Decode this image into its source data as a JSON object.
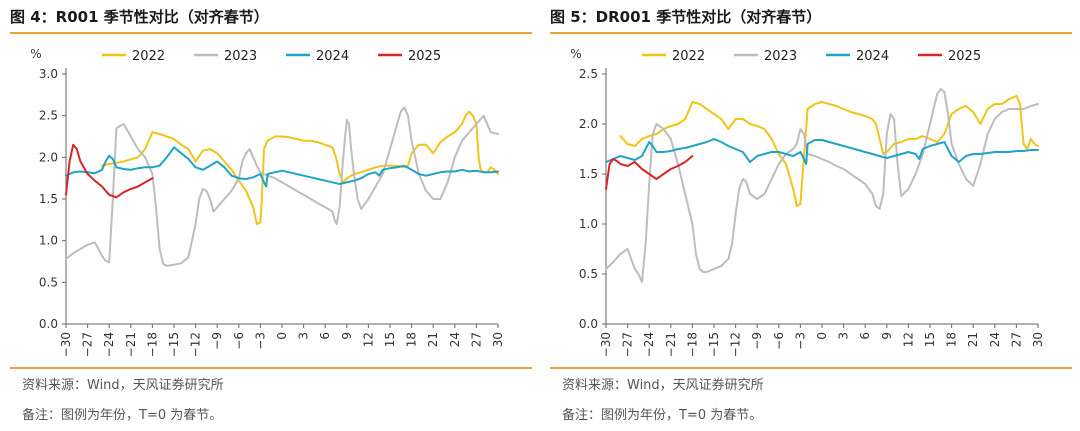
{
  "panels": [
    {
      "title": "图 4：R001 季节性对比（对齐春节）",
      "source": "资料来源：Wind，天风证券研究所",
      "remark": "备注：图例为年份，T=0 为春节。"
    },
    {
      "title": "图 5：DR001 季节性对比（对齐春节）",
      "source": "资料来源：Wind，天风证券研究所",
      "remark": "备注：图例为年份，T=0 为春节。"
    }
  ],
  "colors": {
    "2022": "#f0c419",
    "2023": "#bdbdbd",
    "2024": "#1fa3c8",
    "2025": "#d7262a"
  },
  "chart_data": [
    {
      "type": "line",
      "title": "R001 季节性对比（对齐春节）",
      "ylabel": "%",
      "xlabel": "",
      "ylim": [
        0.0,
        3.0
      ],
      "xlim": [
        -30,
        30
      ],
      "yticks": [
        "0.0",
        "0.5",
        "1.0",
        "1.5",
        "2.0",
        "2.5",
        "3.0"
      ],
      "xticks": [
        "-30",
        "-27",
        "-24",
        "-21",
        "-18",
        "-15",
        "-12",
        "-9",
        "-6",
        "-3",
        "0",
        "3",
        "6",
        "9",
        "12",
        "15",
        "18",
        "21",
        "24",
        "27",
        "30"
      ],
      "legend_position": "top",
      "series": [
        {
          "name": "2022",
          "x": [
            -25,
            -24,
            -22,
            -20,
            -19,
            -18,
            -17,
            -16,
            -15,
            -14,
            -13,
            -12,
            -11,
            -10,
            -9,
            -8,
            -7,
            -6,
            -5,
            -4,
            -3.5,
            -3,
            -2.8,
            -2.5,
            -2,
            -1,
            0,
            1,
            2,
            3,
            4,
            5,
            6,
            7,
            7.5,
            8,
            8.5,
            9,
            10,
            11,
            12,
            13,
            14,
            15,
            16,
            17,
            17.5,
            18,
            19,
            20,
            21,
            22,
            23,
            24,
            25,
            25.5,
            26,
            26.5,
            27,
            27.3,
            27.6,
            28,
            28.5,
            29,
            29.5,
            30
          ],
          "values": [
            1.9,
            1.92,
            1.95,
            2.0,
            2.1,
            2.3,
            2.28,
            2.25,
            2.22,
            2.15,
            2.1,
            1.95,
            2.08,
            2.1,
            2.05,
            1.95,
            1.85,
            1.72,
            1.6,
            1.4,
            1.2,
            1.22,
            1.5,
            2.1,
            2.2,
            2.25,
            2.25,
            2.24,
            2.22,
            2.2,
            2.2,
            2.18,
            2.15,
            2.12,
            2.0,
            1.8,
            1.7,
            1.75,
            1.8,
            1.82,
            1.85,
            1.88,
            1.9,
            1.9,
            1.9,
            1.88,
            1.9,
            2.05,
            2.15,
            2.15,
            2.05,
            2.18,
            2.25,
            2.3,
            2.4,
            2.5,
            2.55,
            2.5,
            2.4,
            2.0,
            1.85,
            1.82,
            1.82,
            1.88,
            1.85,
            1.8
          ]
        },
        {
          "name": "2023",
          "x": [
            -30,
            -29,
            -28,
            -27,
            -26,
            -25,
            -24.5,
            -24,
            -23.5,
            -23,
            -22,
            -21,
            -20,
            -19,
            -18,
            -17.5,
            -17,
            -16.5,
            -16,
            -15,
            -14,
            -13,
            -12.5,
            -12,
            -11.5,
            -11,
            -10.5,
            -10,
            -9.5,
            -9,
            -8,
            -7,
            -6,
            -5.5,
            -5,
            -4.5,
            -4,
            -3.5,
            -3,
            -2.5,
            -2,
            -1,
            0,
            1,
            2,
            3,
            4,
            5,
            6,
            7,
            7.3,
            7.6,
            8,
            8.5,
            9,
            9.3,
            9.6,
            10,
            10.5,
            11,
            12,
            13,
            14,
            15,
            16,
            16.5,
            17,
            17.5,
            18,
            19,
            20,
            21,
            22,
            23,
            24,
            25,
            26,
            27,
            28,
            29,
            30
          ],
          "values": [
            0.78,
            0.85,
            0.9,
            0.95,
            0.98,
            0.82,
            0.76,
            0.74,
            1.5,
            2.35,
            2.4,
            2.25,
            2.1,
            2.0,
            1.8,
            1.4,
            0.9,
            0.72,
            0.7,
            0.71,
            0.73,
            0.8,
            1.0,
            1.2,
            1.5,
            1.62,
            1.6,
            1.5,
            1.35,
            1.4,
            1.5,
            1.6,
            1.75,
            1.95,
            2.05,
            2.1,
            2.0,
            1.9,
            1.82,
            1.8,
            1.78,
            1.75,
            1.7,
            1.65,
            1.6,
            1.55,
            1.5,
            1.45,
            1.4,
            1.35,
            1.25,
            1.2,
            1.4,
            2.0,
            2.45,
            2.4,
            2.1,
            1.8,
            1.5,
            1.38,
            1.5,
            1.65,
            1.8,
            2.1,
            2.4,
            2.55,
            2.6,
            2.5,
            2.2,
            1.8,
            1.6,
            1.5,
            1.5,
            1.7,
            2.0,
            2.2,
            2.3,
            2.4,
            2.5,
            2.3,
            2.28
          ]
        },
        {
          "name": "2024",
          "x": [
            -30,
            -29,
            -28,
            -27,
            -26,
            -25,
            -24.5,
            -24,
            -23.5,
            -23,
            -22,
            -21,
            -20,
            -19,
            -18,
            -17,
            -16,
            -15,
            -14,
            -13,
            -12,
            -11,
            -10,
            -9,
            -8,
            -7,
            -6,
            -5,
            -4,
            -3,
            -2.5,
            -2.2,
            -2,
            -1,
            0,
            1,
            2,
            3,
            4,
            5,
            6,
            7,
            8,
            9,
            10,
            11,
            12,
            13,
            13.5,
            14,
            15,
            16,
            17,
            18,
            19,
            20,
            21,
            22,
            23,
            24,
            25,
            26,
            27,
            28,
            29,
            30
          ],
          "values": [
            1.78,
            1.82,
            1.83,
            1.82,
            1.81,
            1.85,
            1.95,
            2.02,
            1.98,
            1.88,
            1.86,
            1.85,
            1.87,
            1.88,
            1.88,
            1.9,
            2.0,
            2.12,
            2.05,
            1.98,
            1.88,
            1.85,
            1.9,
            1.95,
            1.88,
            1.78,
            1.75,
            1.74,
            1.76,
            1.8,
            1.7,
            1.65,
            1.8,
            1.82,
            1.84,
            1.82,
            1.8,
            1.78,
            1.76,
            1.74,
            1.72,
            1.7,
            1.68,
            1.7,
            1.72,
            1.75,
            1.8,
            1.82,
            1.78,
            1.85,
            1.87,
            1.88,
            1.9,
            1.85,
            1.8,
            1.78,
            1.8,
            1.82,
            1.83,
            1.83,
            1.85,
            1.83,
            1.84,
            1.82,
            1.82,
            1.83
          ]
        },
        {
          "name": "2025",
          "x": [
            -30,
            -29.5,
            -29,
            -28.5,
            -28,
            -27,
            -26,
            -25,
            -24,
            -23,
            -22,
            -21,
            -20,
            -19,
            -18
          ],
          "values": [
            1.55,
            1.95,
            2.15,
            2.1,
            1.95,
            1.8,
            1.72,
            1.65,
            1.55,
            1.52,
            1.58,
            1.62,
            1.65,
            1.7,
            1.75
          ]
        }
      ]
    },
    {
      "type": "line",
      "title": "DR001 季节性对比（对齐春节）",
      "ylabel": "%",
      "xlabel": "",
      "ylim": [
        0.0,
        2.5
      ],
      "xlim": [
        -30,
        30
      ],
      "yticks": [
        "0.0",
        "0.5",
        "1.0",
        "1.5",
        "2.0",
        "2.5"
      ],
      "xticks": [
        "-30",
        "-27",
        "-24",
        "-21",
        "-18",
        "-15",
        "-12",
        "-9",
        "-6",
        "-3",
        "0",
        "3",
        "6",
        "9",
        "12",
        "15",
        "18",
        "21",
        "24",
        "27",
        "30"
      ],
      "legend_position": "top",
      "series": [
        {
          "name": "2022",
          "x": [
            -28,
            -27,
            -26,
            -25,
            -24,
            -23,
            -22,
            -21,
            -20,
            -19,
            -18,
            -17,
            -16,
            -15,
            -14,
            -13,
            -12,
            -11,
            -10,
            -9,
            -8,
            -7,
            -6,
            -5,
            -4,
            -3.5,
            -3,
            -2.7,
            -2.3,
            -2,
            -1,
            0,
            1,
            2,
            3,
            4,
            5,
            6,
            7,
            7.5,
            8,
            8.5,
            9,
            10,
            11,
            12,
            13,
            14,
            15,
            16,
            17,
            18,
            19,
            20,
            21,
            22,
            23,
            24,
            25,
            26,
            27,
            27.5,
            28,
            28.5,
            29,
            29.5,
            30
          ],
          "values": [
            1.88,
            1.8,
            1.78,
            1.85,
            1.88,
            1.9,
            1.95,
            1.98,
            2.0,
            2.05,
            2.22,
            2.2,
            2.15,
            2.1,
            2.05,
            1.95,
            2.05,
            2.05,
            2.0,
            1.98,
            1.95,
            1.85,
            1.7,
            1.6,
            1.35,
            1.18,
            1.2,
            1.5,
            1.85,
            2.15,
            2.2,
            2.22,
            2.2,
            2.18,
            2.15,
            2.12,
            2.1,
            2.08,
            2.05,
            2.0,
            1.85,
            1.7,
            1.72,
            1.8,
            1.82,
            1.85,
            1.85,
            1.88,
            1.85,
            1.82,
            1.9,
            2.1,
            2.15,
            2.18,
            2.12,
            2.0,
            2.15,
            2.2,
            2.2,
            2.25,
            2.28,
            2.2,
            1.8,
            1.75,
            1.85,
            1.8,
            1.78
          ]
        },
        {
          "name": "2023",
          "x": [
            -30,
            -29,
            -28,
            -27,
            -26,
            -25.5,
            -25,
            -24.5,
            -24,
            -23.5,
            -23,
            -22,
            -21,
            -20,
            -19,
            -18,
            -17.5,
            -17,
            -16.5,
            -16,
            -15,
            -14,
            -13,
            -12.5,
            -12,
            -11.5,
            -11,
            -10.5,
            -10,
            -9,
            -8,
            -7,
            -6,
            -5,
            -4,
            -3.5,
            -3,
            -2.5,
            -2,
            -1,
            0,
            1,
            2,
            3,
            4,
            5,
            6,
            7,
            7.5,
            8,
            8.5,
            9,
            9.5,
            10,
            10.5,
            11,
            12,
            13,
            14,
            15,
            16,
            16.5,
            17,
            17.5,
            18,
            19,
            20,
            21,
            22,
            23,
            24,
            25,
            26,
            27,
            28,
            29,
            30
          ],
          "values": [
            0.55,
            0.62,
            0.7,
            0.75,
            0.55,
            0.5,
            0.42,
            0.8,
            1.4,
            1.9,
            2.0,
            1.95,
            1.85,
            1.6,
            1.3,
            1.0,
            0.7,
            0.55,
            0.52,
            0.52,
            0.55,
            0.58,
            0.65,
            0.8,
            1.1,
            1.35,
            1.45,
            1.42,
            1.3,
            1.25,
            1.3,
            1.45,
            1.6,
            1.7,
            1.75,
            1.8,
            1.95,
            1.9,
            1.7,
            1.68,
            1.65,
            1.62,
            1.58,
            1.55,
            1.5,
            1.45,
            1.4,
            1.3,
            1.18,
            1.15,
            1.3,
            1.9,
            2.1,
            2.05,
            1.6,
            1.28,
            1.35,
            1.5,
            1.7,
            2.0,
            2.3,
            2.35,
            2.32,
            2.1,
            1.8,
            1.6,
            1.45,
            1.38,
            1.6,
            1.9,
            2.05,
            2.12,
            2.15,
            2.15,
            2.15,
            2.18,
            2.2
          ]
        },
        {
          "name": "2024",
          "x": [
            -30,
            -29,
            -28,
            -27,
            -26,
            -25,
            -24.5,
            -24,
            -23.5,
            -23,
            -22,
            -21,
            -20,
            -19,
            -18,
            -17,
            -16,
            -15,
            -14,
            -13,
            -12,
            -11,
            -10,
            -9,
            -8,
            -7,
            -6,
            -5,
            -4,
            -3,
            -2.5,
            -2.2,
            -2,
            -1,
            0,
            1,
            2,
            3,
            4,
            5,
            6,
            7,
            8,
            9,
            10,
            11,
            12,
            13,
            13.5,
            14,
            15,
            16,
            17,
            18,
            19,
            20,
            21,
            22,
            23,
            24,
            25,
            26,
            27,
            28,
            29,
            30
          ],
          "values": [
            1.62,
            1.65,
            1.68,
            1.66,
            1.64,
            1.68,
            1.75,
            1.82,
            1.78,
            1.72,
            1.72,
            1.73,
            1.75,
            1.76,
            1.78,
            1.8,
            1.82,
            1.85,
            1.82,
            1.78,
            1.75,
            1.72,
            1.62,
            1.68,
            1.7,
            1.72,
            1.72,
            1.7,
            1.68,
            1.72,
            1.65,
            1.6,
            1.8,
            1.84,
            1.84,
            1.82,
            1.8,
            1.78,
            1.76,
            1.74,
            1.72,
            1.7,
            1.68,
            1.66,
            1.68,
            1.7,
            1.72,
            1.7,
            1.65,
            1.75,
            1.78,
            1.8,
            1.82,
            1.68,
            1.62,
            1.68,
            1.7,
            1.7,
            1.71,
            1.72,
            1.72,
            1.72,
            1.73,
            1.73,
            1.74,
            1.74
          ]
        },
        {
          "name": "2025",
          "x": [
            -30,
            -29.5,
            -29,
            -28.5,
            -28,
            -27,
            -26,
            -25,
            -24,
            -23,
            -22,
            -21,
            -20,
            -19,
            -18
          ],
          "values": [
            1.35,
            1.6,
            1.65,
            1.63,
            1.6,
            1.58,
            1.62,
            1.55,
            1.5,
            1.45,
            1.5,
            1.55,
            1.58,
            1.62,
            1.68
          ]
        }
      ]
    }
  ]
}
